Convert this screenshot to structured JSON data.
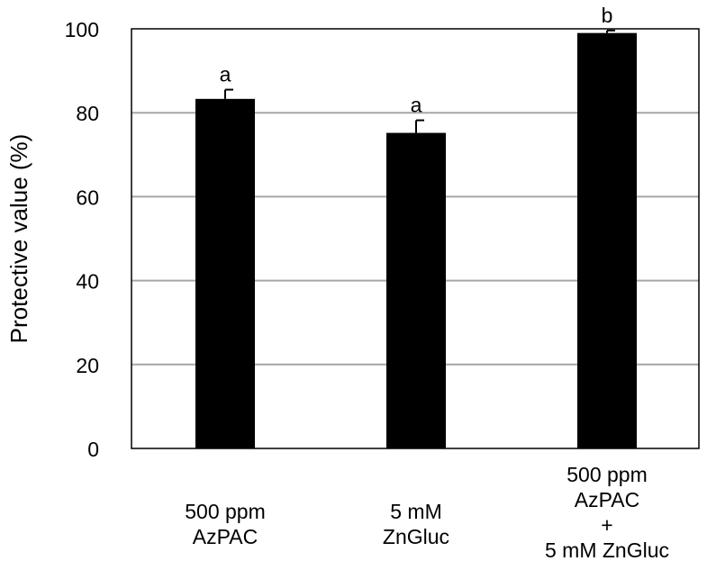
{
  "chart_data": {
    "type": "bar",
    "title": "",
    "ylabel": "Protective value (%)",
    "xlabel": "",
    "ylim": [
      0,
      100
    ],
    "yticks": [
      0,
      20,
      40,
      60,
      80,
      100
    ],
    "categories": [
      [
        "500 ppm",
        "AzPAC"
      ],
      [
        "5 mM",
        "ZnGluc"
      ],
      [
        "500 ppm",
        "AzPAC",
        "+",
        "5 mM ZnGluc"
      ]
    ],
    "values": [
      83.3,
      75.2,
      99.0
    ],
    "errors": [
      2.2,
      3.0,
      0.6
    ],
    "significance_letters": [
      "a",
      "a",
      "b"
    ],
    "grid": true,
    "bar_color": "#000000",
    "grid_color": "#a6a6a6"
  }
}
